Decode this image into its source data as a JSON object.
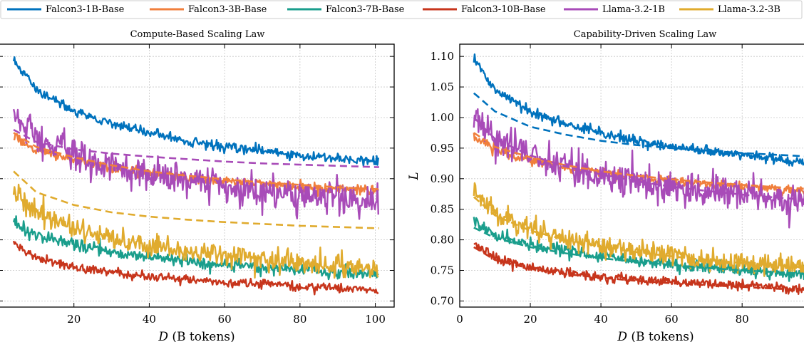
{
  "legend": [
    {
      "name": "Falcon3-1B-Base",
      "color": "#0072bd"
    },
    {
      "name": "Falcon3-3B-Base",
      "color": "#f07f3c"
    },
    {
      "name": "Falcon3-7B-Base",
      "color": "#1a9e8c"
    },
    {
      "name": "Falcon3-10B-Base",
      "color": "#c7351c"
    },
    {
      "name": "Llama-3.2-1B",
      "color": "#a84bb8"
    },
    {
      "name": "Llama-3.2-3B",
      "color": "#e0ab2e"
    }
  ],
  "chart_data": [
    {
      "type": "line",
      "title": "Compute-Based Scaling Law",
      "xlabel_var": "D",
      "xlabel_unit": "(B tokens)",
      "ylabel": "",
      "xlim": [
        0,
        105
      ],
      "ylim": [
        0.69,
        1.12
      ],
      "xticks": [
        0,
        20,
        40,
        60,
        80,
        100
      ],
      "yticks": [
        0.7,
        0.75,
        0.8,
        0.85,
        0.9,
        0.95,
        1.0,
        1.05,
        1.1
      ],
      "grid": true,
      "observed": [
        {
          "name": "Falcon3-1B-Base",
          "x": [
            4,
            10,
            20,
            30,
            40,
            50,
            60,
            70,
            80,
            90,
            100
          ],
          "y": [
            1.095,
            1.045,
            1.01,
            0.99,
            0.975,
            0.962,
            0.953,
            0.945,
            0.938,
            0.932,
            0.928
          ]
        },
        {
          "name": "Falcon3-3B-Base",
          "x": [
            4,
            10,
            20,
            30,
            40,
            50,
            60,
            70,
            80,
            90,
            100
          ],
          "y": [
            0.968,
            0.948,
            0.93,
            0.918,
            0.91,
            0.902,
            0.896,
            0.891,
            0.887,
            0.883,
            0.88
          ]
        },
        {
          "name": "Falcon3-7B-Base",
          "x": [
            4,
            10,
            20,
            30,
            40,
            50,
            60,
            70,
            80,
            90,
            100
          ],
          "y": [
            0.828,
            0.808,
            0.792,
            0.781,
            0.772,
            0.766,
            0.76,
            0.755,
            0.751,
            0.747,
            0.744
          ]
        },
        {
          "name": "Falcon3-10B-Base",
          "x": [
            4,
            10,
            20,
            30,
            40,
            50,
            60,
            70,
            80,
            90,
            100
          ],
          "y": [
            0.795,
            0.77,
            0.755,
            0.746,
            0.74,
            0.735,
            0.731,
            0.728,
            0.725,
            0.722,
            0.718
          ]
        },
        {
          "name": "Llama-3.2-1B",
          "x": [
            4,
            10,
            20,
            30,
            40,
            50,
            60,
            70,
            80,
            90,
            100
          ],
          "y": [
            1.01,
            0.97,
            0.94,
            0.92,
            0.906,
            0.895,
            0.886,
            0.879,
            0.873,
            0.868,
            0.864
          ]
        },
        {
          "name": "Llama-3.2-3B",
          "x": [
            4,
            10,
            20,
            30,
            40,
            50,
            60,
            70,
            80,
            90,
            100
          ],
          "y": [
            0.878,
            0.845,
            0.818,
            0.801,
            0.79,
            0.781,
            0.774,
            0.768,
            0.763,
            0.758,
            0.755
          ]
        }
      ],
      "fitted": [
        {
          "name": "Falcon3-3B-Base",
          "x": [
            4,
            10,
            20,
            30,
            40,
            50,
            60,
            70,
            80,
            90,
            100
          ],
          "y": [
            0.975,
            0.952,
            0.935,
            0.922,
            0.912,
            0.905,
            0.899,
            0.894,
            0.89,
            0.886,
            0.883
          ]
        },
        {
          "name": "Llama-3.2-1B",
          "x": [
            4,
            10,
            20,
            30,
            40,
            50,
            60,
            70,
            80,
            90,
            100
          ],
          "y": [
            0.98,
            0.96,
            0.948,
            0.941,
            0.936,
            0.932,
            0.928,
            0.925,
            0.923,
            0.921,
            0.919
          ]
        },
        {
          "name": "Llama-3.2-3B",
          "x": [
            4,
            10,
            20,
            30,
            40,
            50,
            60,
            70,
            80,
            90,
            100
          ],
          "y": [
            0.912,
            0.878,
            0.857,
            0.845,
            0.838,
            0.833,
            0.829,
            0.826,
            0.823,
            0.821,
            0.819
          ]
        }
      ]
    },
    {
      "type": "line",
      "title": "Capability-Driven Scaling Law",
      "xlabel_var": "D",
      "xlabel_unit": "(B tokens)",
      "ylabel": "L",
      "xlim": [
        0,
        105
      ],
      "ylim": [
        0.69,
        1.12
      ],
      "xticks": [
        0,
        20,
        40,
        60,
        80,
        100
      ],
      "yticks": [
        0.7,
        0.75,
        0.8,
        0.85,
        0.9,
        0.95,
        1.0,
        1.05,
        1.1
      ],
      "ytick_labels": [
        "0.70",
        "0.75",
        "0.80",
        "0.85",
        "0.90",
        "0.95",
        "1.00",
        "1.05",
        "1.10"
      ],
      "grid": true,
      "observed": [
        {
          "name": "Falcon3-1B-Base",
          "x": [
            4,
            10,
            20,
            30,
            40,
            50,
            60,
            70,
            80,
            90,
            100
          ],
          "y": [
            1.095,
            1.045,
            1.01,
            0.99,
            0.975,
            0.962,
            0.953,
            0.945,
            0.938,
            0.932,
            0.928
          ]
        },
        {
          "name": "Falcon3-3B-Base",
          "x": [
            4,
            10,
            20,
            30,
            40,
            50,
            60,
            70,
            80,
            90,
            100
          ],
          "y": [
            0.968,
            0.948,
            0.93,
            0.918,
            0.91,
            0.902,
            0.896,
            0.891,
            0.887,
            0.883,
            0.88
          ]
        },
        {
          "name": "Falcon3-7B-Base",
          "x": [
            4,
            10,
            20,
            30,
            40,
            50,
            60,
            70,
            80,
            90,
            100
          ],
          "y": [
            0.828,
            0.808,
            0.792,
            0.781,
            0.772,
            0.766,
            0.76,
            0.755,
            0.751,
            0.747,
            0.744
          ]
        },
        {
          "name": "Falcon3-10B-Base",
          "x": [
            4,
            10,
            20,
            30,
            40,
            50,
            60,
            70,
            80,
            90,
            100
          ],
          "y": [
            0.795,
            0.77,
            0.755,
            0.746,
            0.74,
            0.735,
            0.731,
            0.728,
            0.725,
            0.722,
            0.718
          ]
        },
        {
          "name": "Llama-3.2-1B",
          "x": [
            4,
            10,
            20,
            30,
            40,
            50,
            60,
            70,
            80,
            90,
            100
          ],
          "y": [
            1.01,
            0.97,
            0.94,
            0.92,
            0.906,
            0.895,
            0.886,
            0.879,
            0.873,
            0.868,
            0.864
          ]
        },
        {
          "name": "Llama-3.2-3B",
          "x": [
            4,
            10,
            20,
            30,
            40,
            50,
            60,
            70,
            80,
            90,
            100
          ],
          "y": [
            0.878,
            0.845,
            0.818,
            0.801,
            0.79,
            0.781,
            0.774,
            0.768,
            0.763,
            0.758,
            0.755
          ]
        }
      ],
      "fitted": [
        {
          "name": "Falcon3-1B-Base",
          "x": [
            4,
            10,
            20,
            30,
            40,
            50,
            60,
            70,
            80,
            90,
            100
          ],
          "y": [
            1.04,
            1.01,
            0.985,
            0.972,
            0.962,
            0.955,
            0.95,
            0.946,
            0.942,
            0.939,
            0.936
          ]
        },
        {
          "name": "Falcon3-3B-Base",
          "x": [
            4,
            10,
            20,
            30,
            40,
            50,
            60,
            70,
            80,
            90,
            100
          ],
          "y": [
            0.975,
            0.952,
            0.935,
            0.922,
            0.912,
            0.905,
            0.899,
            0.894,
            0.89,
            0.886,
            0.883
          ]
        },
        {
          "name": "Falcon3-7B-Base",
          "x": [
            4,
            10,
            20,
            30,
            40,
            50,
            60,
            70,
            80,
            90,
            100
          ],
          "y": [
            0.82,
            0.803,
            0.788,
            0.778,
            0.77,
            0.764,
            0.759,
            0.754,
            0.75,
            0.747,
            0.744
          ]
        },
        {
          "name": "Falcon3-10B-Base",
          "x": [
            4,
            10,
            20,
            30,
            40,
            50,
            60,
            70,
            80,
            90,
            100
          ],
          "y": [
            0.788,
            0.767,
            0.753,
            0.744,
            0.738,
            0.733,
            0.729,
            0.726,
            0.723,
            0.72,
            0.718
          ]
        },
        {
          "name": "Llama-3.2-1B",
          "x": [
            4,
            10,
            20,
            30,
            40,
            50,
            60,
            70,
            80,
            90,
            100
          ],
          "y": [
            1.0,
            0.965,
            0.938,
            0.92,
            0.907,
            0.896,
            0.887,
            0.88,
            0.874,
            0.869,
            0.865
          ]
        },
        {
          "name": "Llama-3.2-3B",
          "x": [
            4,
            10,
            20,
            30,
            40,
            50,
            60,
            70,
            80,
            90,
            100
          ],
          "y": [
            0.87,
            0.84,
            0.815,
            0.8,
            0.789,
            0.78,
            0.773,
            0.767,
            0.762,
            0.758,
            0.754
          ]
        }
      ]
    }
  ]
}
